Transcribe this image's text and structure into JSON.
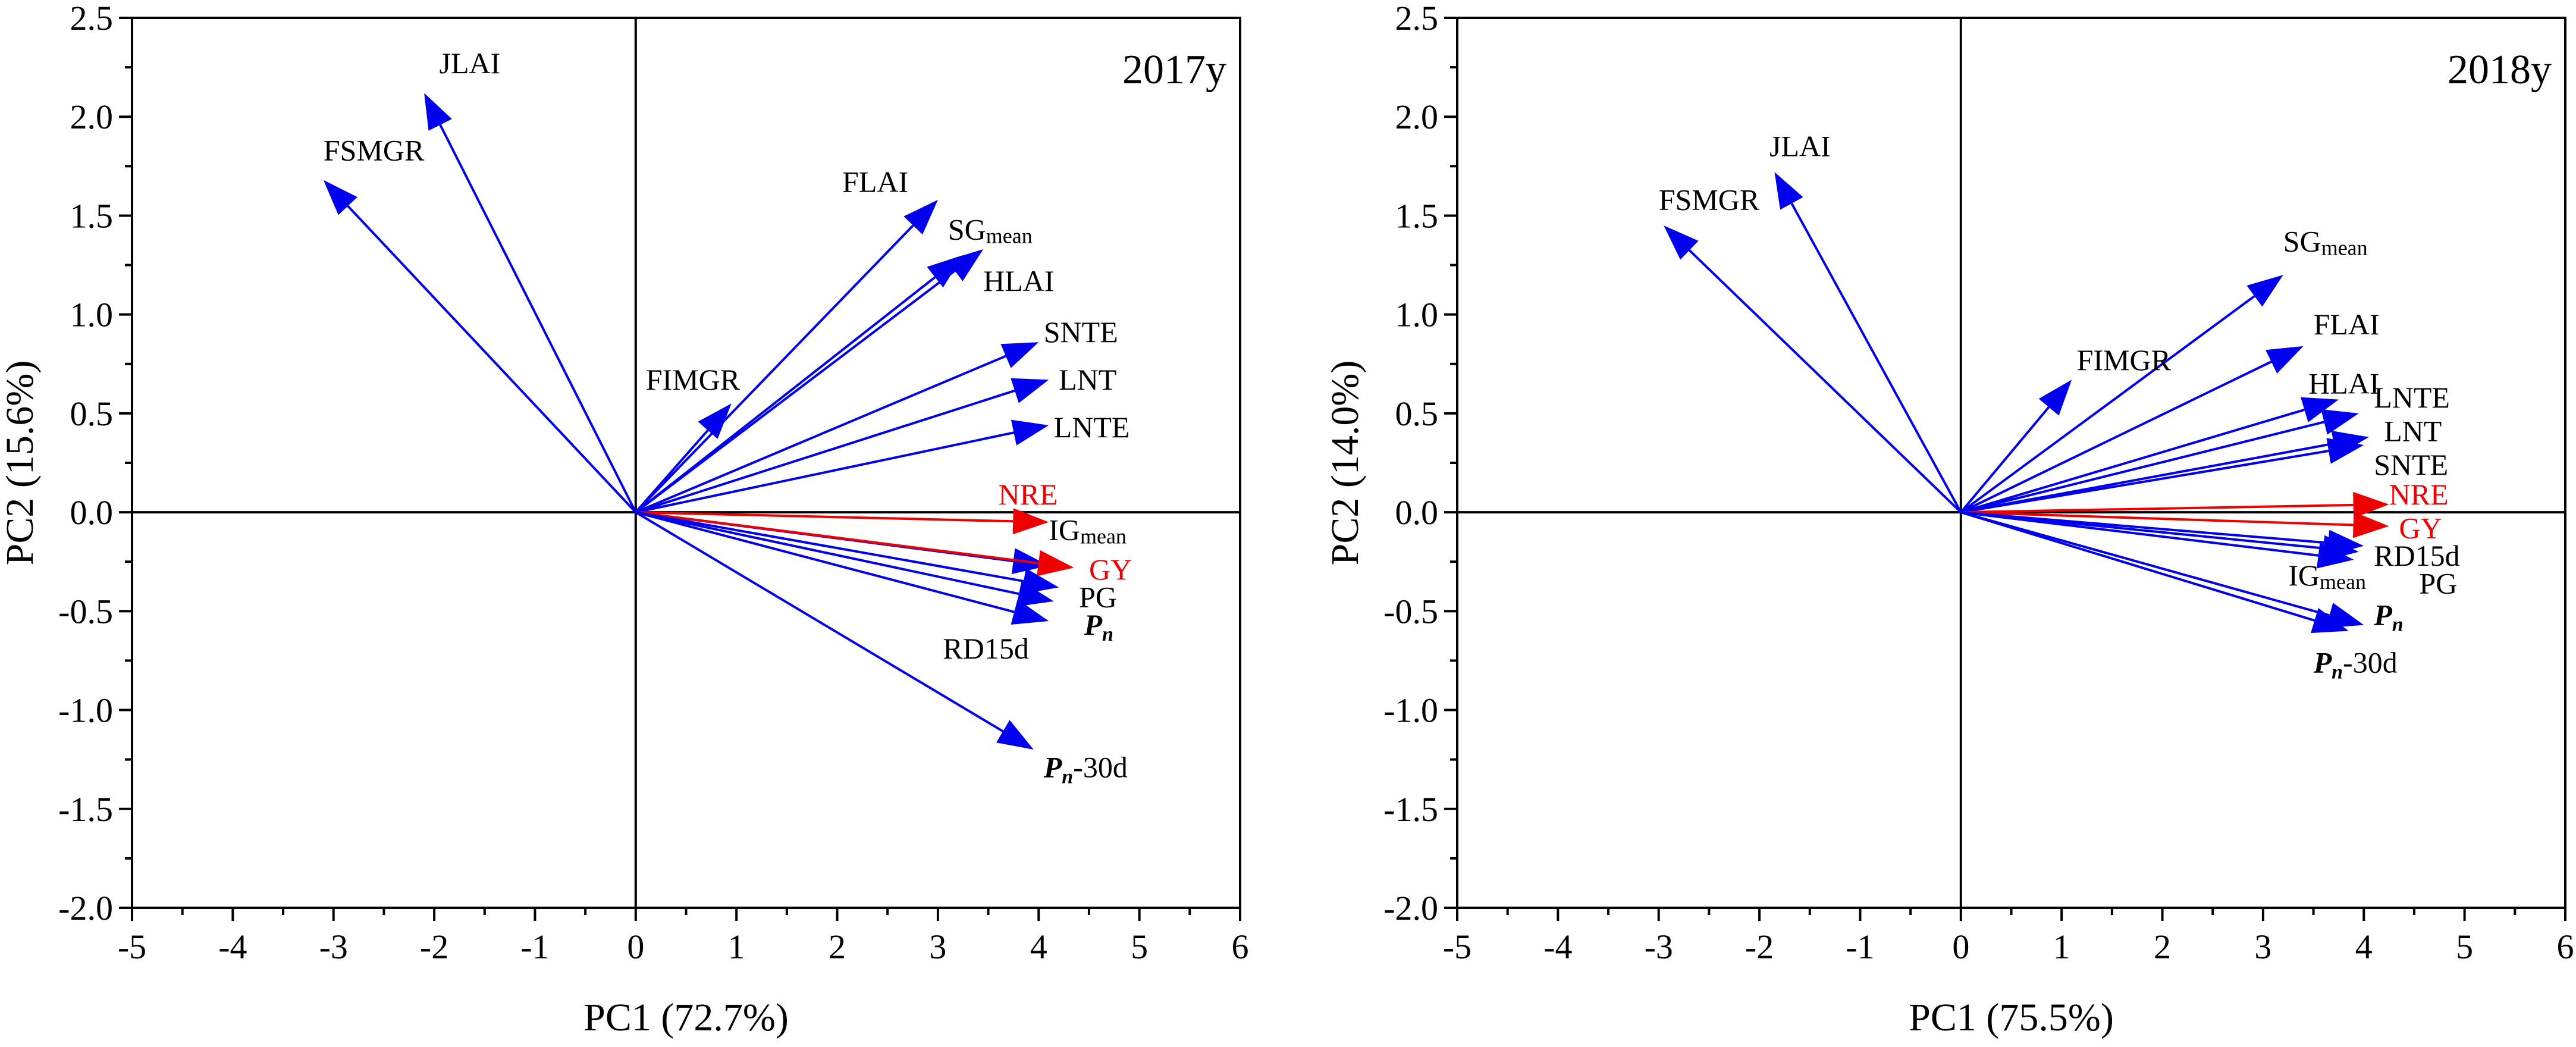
{
  "chart_data": [
    {
      "type": "biplot",
      "panel_label": "2017y",
      "xlabel": "PC1 (72.7%)",
      "ylabel": "PC2 (15.6%)",
      "xlim": [
        -5,
        6
      ],
      "ylim": [
        -2.0,
        2.5
      ],
      "x_ticks": [
        "-5",
        "-4",
        "-3",
        "-2",
        "-1",
        "0",
        "1",
        "2",
        "3",
        "4",
        "5",
        "6"
      ],
      "y_ticks": [
        "-2.0",
        "-1.5",
        "-1.0",
        "-0.5",
        "0.0",
        "0.5",
        "1.0",
        "1.5",
        "2.0",
        "2.5"
      ],
      "vectors": [
        {
          "label": "JLAI",
          "x": -2.1,
          "y": 2.12,
          "color": "#0000ee",
          "lx": -1.95,
          "ly": 2.22
        },
        {
          "label": "FSMGR",
          "x": -3.1,
          "y": 1.68,
          "color": "#0000ee",
          "lx": -3.1,
          "ly": 1.78
        },
        {
          "label": "FLAI",
          "x": 3.0,
          "y": 1.58,
          "color": "#0000ee",
          "lx": 2.05,
          "ly": 1.62
        },
        {
          "label": "SGmean",
          "x": 3.25,
          "y": 1.3,
          "color": "#0000ee",
          "lx": 3.1,
          "ly": 1.38
        },
        {
          "label": "HLAI",
          "x": 3.45,
          "y": 1.33,
          "color": "#0000ee",
          "lx": 3.45,
          "ly": 1.12
        },
        {
          "label": "FIMGR",
          "x": 0.95,
          "y": 0.55,
          "color": "#0000ee",
          "lx": 0.1,
          "ly": 0.62
        },
        {
          "label": "SNTE",
          "x": 4.0,
          "y": 0.86,
          "color": "#0000ee",
          "lx": 4.05,
          "ly": 0.86
        },
        {
          "label": "LNT",
          "x": 4.1,
          "y": 0.67,
          "color": "#0000ee",
          "lx": 4.2,
          "ly": 0.62
        },
        {
          "label": "LNTE",
          "x": 4.1,
          "y": 0.44,
          "color": "#0000ee",
          "lx": 4.15,
          "ly": 0.38
        },
        {
          "label": "NRE",
          "x": 4.1,
          "y": -0.05,
          "color": "#ee0000",
          "lx": 3.6,
          "ly": 0.04
        },
        {
          "label": "IGmean",
          "x": 4.1,
          "y": -0.27,
          "color": "#0000ee",
          "lx": 4.1,
          "ly": -0.14
        },
        {
          "label": "GY",
          "x": 4.35,
          "y": -0.28,
          "color": "#ee0000",
          "lx": 4.5,
          "ly": -0.34
        },
        {
          "label": "PG",
          "x": 4.2,
          "y": -0.38,
          "color": "#0000ee",
          "lx": 4.4,
          "ly": -0.48
        },
        {
          "label": "Pn",
          "x": 4.15,
          "y": -0.45,
          "color": "#0000ee",
          "lx": 4.45,
          "ly": -0.62
        },
        {
          "label": "RD15d",
          "x": 4.1,
          "y": -0.55,
          "color": "#0000ee",
          "lx": 3.05,
          "ly": -0.74
        },
        {
          "label": "Pn-30d",
          "x": 3.95,
          "y": -1.2,
          "color": "#0000ee",
          "lx": 4.05,
          "ly": -1.34
        }
      ]
    },
    {
      "type": "biplot",
      "panel_label": "2018y",
      "xlabel": "PC1 (75.5%)",
      "ylabel": "PC2 (14.0%)",
      "xlim": [
        -5,
        6
      ],
      "ylim": [
        -2.0,
        2.5
      ],
      "x_ticks": [
        "-5",
        "-4",
        "-3",
        "-2",
        "-1",
        "0",
        "1",
        "2",
        "3",
        "4",
        "5",
        "6"
      ],
      "y_ticks": [
        "-2.0",
        "-1.5",
        "-1.0",
        "-0.5",
        "0.0",
        "0.5",
        "1.0",
        "1.5",
        "2.0",
        "2.5"
      ],
      "vectors": [
        {
          "label": "JLAI",
          "x": -1.85,
          "y": 1.72,
          "color": "#0000ee",
          "lx": -1.9,
          "ly": 1.8
        },
        {
          "label": "FSMGR",
          "x": -2.95,
          "y": 1.45,
          "color": "#0000ee",
          "lx": -3.0,
          "ly": 1.53
        },
        {
          "label": "SGmean",
          "x": 3.2,
          "y": 1.2,
          "color": "#0000ee",
          "lx": 3.2,
          "ly": 1.32
        },
        {
          "label": "FLAI",
          "x": 3.4,
          "y": 0.84,
          "color": "#0000ee",
          "lx": 3.5,
          "ly": 0.9
        },
        {
          "label": "FIMGR",
          "x": 1.1,
          "y": 0.67,
          "color": "#0000ee",
          "lx": 1.15,
          "ly": 0.72
        },
        {
          "label": "HLAI",
          "x": 3.75,
          "y": 0.57,
          "color": "#0000ee",
          "lx": 3.45,
          "ly": 0.6
        },
        {
          "label": "LNTE",
          "x": 3.95,
          "y": 0.5,
          "color": "#0000ee",
          "lx": 4.1,
          "ly": 0.53
        },
        {
          "label": "LNT",
          "x": 4.05,
          "y": 0.38,
          "color": "#0000ee",
          "lx": 4.2,
          "ly": 0.36
        },
        {
          "label": "SNTE",
          "x": 4.0,
          "y": 0.34,
          "color": "#0000ee",
          "lx": 4.1,
          "ly": 0.19
        },
        {
          "label": "NRE",
          "x": 4.25,
          "y": 0.04,
          "color": "#ee0000",
          "lx": 4.25,
          "ly": 0.04
        },
        {
          "label": "GY",
          "x": 4.25,
          "y": -0.07,
          "color": "#ee0000",
          "lx": 4.35,
          "ly": -0.13
        },
        {
          "label": "RD15d",
          "x": 4.0,
          "y": -0.17,
          "color": "#0000ee",
          "lx": 4.1,
          "ly": -0.27
        },
        {
          "label": "IGmean",
          "x": 3.95,
          "y": -0.2,
          "color": "#0000ee",
          "lx": 3.25,
          "ly": -0.37
        },
        {
          "label": "PG",
          "x": 3.9,
          "y": -0.24,
          "color": "#0000ee",
          "lx": 4.55,
          "ly": -0.41
        },
        {
          "label": "Pn",
          "x": 4.0,
          "y": -0.57,
          "color": "#0000ee",
          "lx": 4.1,
          "ly": -0.57
        },
        {
          "label": "Pn-30d",
          "x": 3.85,
          "y": -0.6,
          "color": "#0000ee",
          "lx": 3.5,
          "ly": -0.81
        }
      ]
    }
  ]
}
